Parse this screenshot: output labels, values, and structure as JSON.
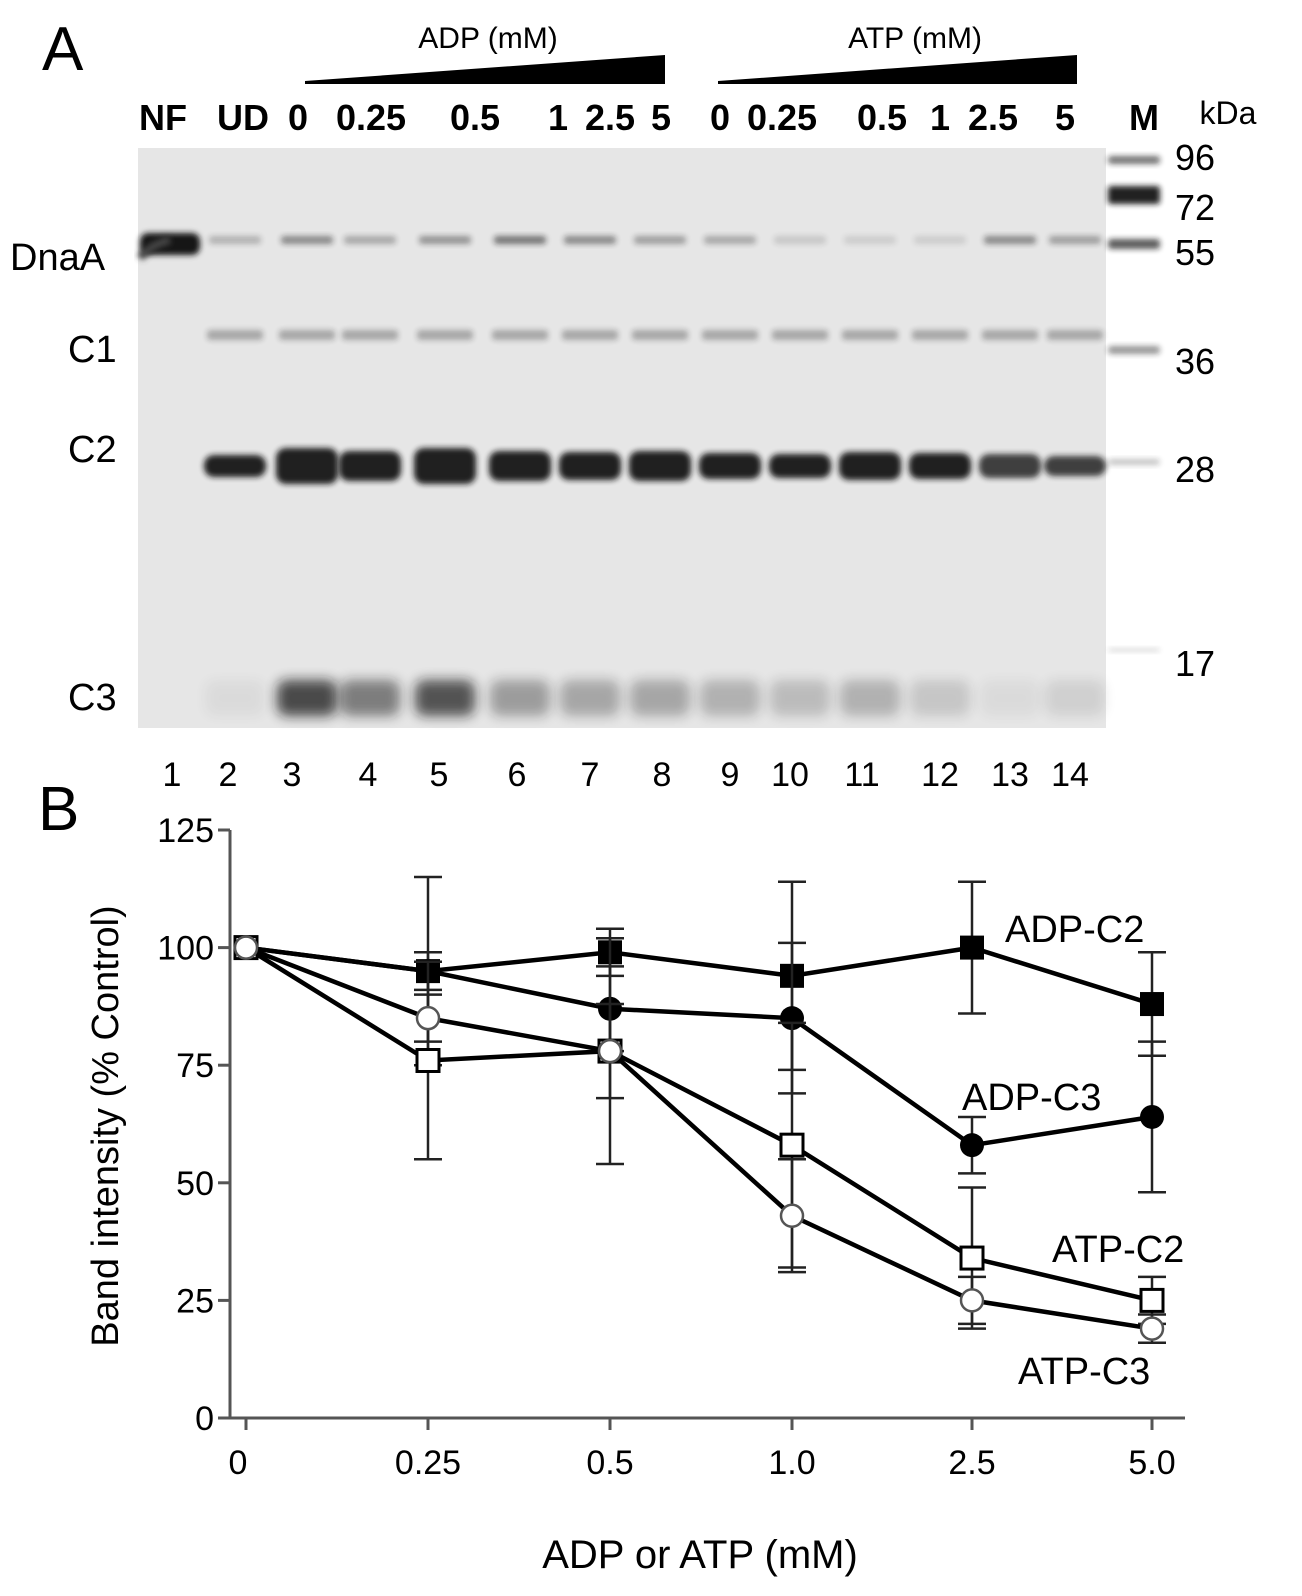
{
  "panel_a": {
    "panel_label": "A",
    "adp_header": "ADP (mM)",
    "atp_header": "ATP (mM)",
    "lane_headers": [
      "NF",
      "UD",
      "0",
      "0.25",
      "0.5",
      "1",
      "2.5",
      "5",
      "0",
      "0.25",
      "0.5",
      "1",
      "2.5",
      "5",
      "M"
    ],
    "kda_label": "kDa",
    "band_labels": [
      "DnaA",
      "C1",
      "C2",
      "C3"
    ],
    "marker_sizes": [
      "96",
      "72",
      "55",
      "36",
      "28",
      "17"
    ],
    "lane_numbers": [
      "1",
      "2",
      "3",
      "4",
      "5",
      "6",
      "7",
      "8",
      "9",
      "10",
      "11",
      "12",
      "13",
      "14"
    ],
    "gel_background": "#e6e6e6",
    "band_color": "#141414"
  },
  "panel_b": {
    "panel_label": "B",
    "chart_data": {
      "type": "line",
      "xlabel": "ADP or ATP (mM)",
      "ylabel": "Band intensity (% Control)",
      "categories": [
        "0",
        "0.25",
        "0.5",
        "1.0",
        "2.5",
        "5.0"
      ],
      "ylim": [
        0,
        125
      ],
      "yticks": [
        "0",
        "25",
        "50",
        "75",
        "100",
        "125"
      ],
      "grid": false,
      "legend": "direct labels at line ends",
      "series": [
        {
          "name": "ADP-C2",
          "marker": "filled-square",
          "values": [
            100,
            95,
            99,
            94,
            100,
            88
          ],
          "error": [
            0,
            20,
            5,
            20,
            14,
            11
          ]
        },
        {
          "name": "ADP-C3",
          "marker": "filled-circle",
          "values": [
            100,
            95,
            87,
            85,
            58,
            64
          ],
          "error": [
            0,
            4,
            9,
            16,
            6,
            16
          ]
        },
        {
          "name": "ATP-C2",
          "marker": "open-square",
          "values": [
            100,
            76,
            78,
            58,
            34,
            25
          ],
          "error": [
            0,
            21,
            24,
            26,
            15,
            5
          ]
        },
        {
          "name": "ATP-C3",
          "marker": "open-circle",
          "values": [
            100,
            85,
            78,
            43,
            25,
            19
          ],
          "error": [
            0,
            5,
            10,
            12,
            5,
            3
          ]
        }
      ]
    }
  }
}
